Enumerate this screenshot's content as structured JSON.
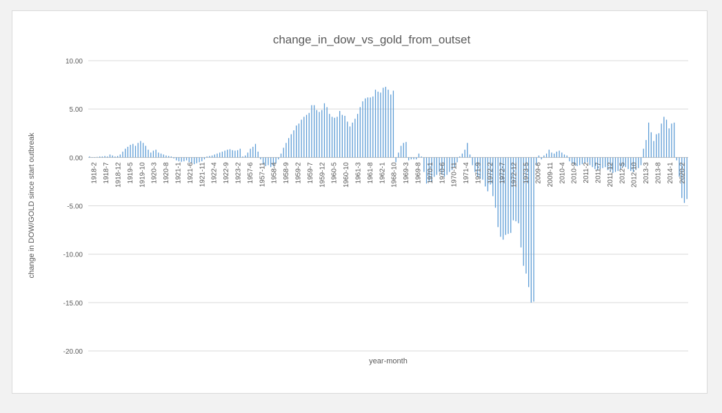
{
  "chart_data": {
    "type": "bar",
    "title": "change_in_dow_vs_gold_from_outset",
    "xlabel": "year-month",
    "ylabel": "change in DOW/GOLD  since start outbreak",
    "ylim": [
      -20,
      10
    ],
    "yticks": [
      "10.00",
      "5.00",
      "0.00",
      "-5.00",
      "-10.00",
      "-15.00",
      "-20.00"
    ],
    "grid": true,
    "legend": "none",
    "bar_color": "#5b9bd5",
    "xticks": [
      "1918-2",
      "1918-7",
      "1918-12",
      "1919-5",
      "1919-10",
      "1920-3",
      "1920-8",
      "1921-1",
      "1921-6",
      "1921-11",
      "1922-4",
      "1922-9",
      "1923-2",
      "1957-6",
      "1957-11",
      "1958-4",
      "1958-9",
      "1959-2",
      "1959-7",
      "1959-12",
      "1960-5",
      "1960-10",
      "1961-3",
      "1961-8",
      "1962-1",
      "1968-10",
      "1969-3",
      "1969-8",
      "1970-1",
      "1970-6",
      "1970-11",
      "1971-4",
      "1971-9",
      "1972-2",
      "1972-7",
      "1972-12",
      "1973-5",
      "2009-6",
      "2009-11",
      "2010-4",
      "2010-9",
      "2011-2",
      "2011-7",
      "2011-12",
      "2012-5",
      "2012-10",
      "2013-3",
      "2013-8",
      "2014-1",
      "2020-2"
    ],
    "values": [
      0.1,
      0.0,
      0.0,
      0.05,
      0.1,
      0.1,
      0.15,
      0.1,
      0.3,
      0.2,
      0.1,
      0.15,
      0.3,
      0.6,
      0.9,
      1.1,
      1.3,
      1.4,
      1.2,
      1.5,
      1.7,
      1.5,
      1.2,
      0.8,
      0.5,
      0.7,
      0.8,
      0.5,
      0.4,
      0.3,
      0.2,
      0.15,
      0.1,
      -0.1,
      -0.3,
      -0.4,
      -0.45,
      -0.4,
      -0.3,
      -0.5,
      -0.6,
      -0.7,
      -0.6,
      -0.5,
      -0.4,
      -0.2,
      0.1,
      0.15,
      0.2,
      0.3,
      0.4,
      0.5,
      0.6,
      0.7,
      0.8,
      0.85,
      0.75,
      0.7,
      0.75,
      0.9,
      0.1,
      0.2,
      0.5,
      0.9,
      1.1,
      1.4,
      0.6,
      -0.2,
      -0.7,
      -0.9,
      -0.8,
      -1.0,
      -0.9,
      -0.6,
      -0.2,
      0.4,
      1.0,
      1.5,
      2.0,
      2.4,
      2.8,
      3.3,
      3.5,
      3.9,
      4.2,
      4.4,
      4.6,
      5.4,
      5.4,
      4.9,
      4.7,
      4.9,
      5.6,
      5.2,
      4.5,
      4.2,
      4.1,
      4.2,
      4.8,
      4.4,
      4.3,
      3.7,
      3.2,
      3.6,
      4.0,
      4.5,
      5.2,
      5.8,
      6.1,
      6.2,
      6.2,
      6.3,
      7.0,
      6.8,
      6.7,
      7.2,
      7.3,
      7.0,
      6.5,
      6.9,
      -0.5,
      0.5,
      1.2,
      1.5,
      1.6,
      -0.3,
      -0.2,
      -0.2,
      -0.2,
      0.4,
      0.1,
      -1.5,
      -2.7,
      -2.5,
      -2.5,
      -2.0,
      -1.8,
      -1.5,
      -1.8,
      -2.0,
      -1.8,
      -1.5,
      -1.3,
      -1.0,
      -0.5,
      0.1,
      0.4,
      0.8,
      1.5,
      0.3,
      -0.8,
      -1.5,
      -2.0,
      -2.2,
      -2.3,
      -3.0,
      -3.5,
      -2.8,
      -4.0,
      -5.2,
      -7.2,
      -8.2,
      -8.5,
      -8.0,
      -7.9,
      -7.8,
      -6.5,
      -6.6,
      -6.8,
      -9.3,
      -11.2,
      -12.0,
      -13.4,
      -15.0,
      -14.9,
      -0.8,
      0.2,
      -0.2,
      0.2,
      0.4,
      0.8,
      0.5,
      0.4,
      0.6,
      0.7,
      0.5,
      0.3,
      0.2,
      -0.4,
      -0.6,
      -0.8,
      -0.9,
      -0.8,
      -0.7,
      -0.6,
      -0.5,
      -0.8,
      -1.0,
      -1.2,
      -1.3,
      -1.2,
      -1.1,
      -1.0,
      -1.3,
      -1.5,
      -1.6,
      -1.5,
      -1.4,
      -1.2,
      -1.0,
      -1.0,
      -1.2,
      -1.4,
      -1.5,
      -1.3,
      -1.1,
      -0.8,
      0.9,
      1.8,
      3.6,
      2.6,
      1.7,
      2.4,
      2.5,
      3.5,
      4.2,
      3.9,
      3.0,
      3.5,
      3.6,
      -0.3,
      -2.0,
      -4.2,
      -4.7,
      -4.3
    ]
  }
}
